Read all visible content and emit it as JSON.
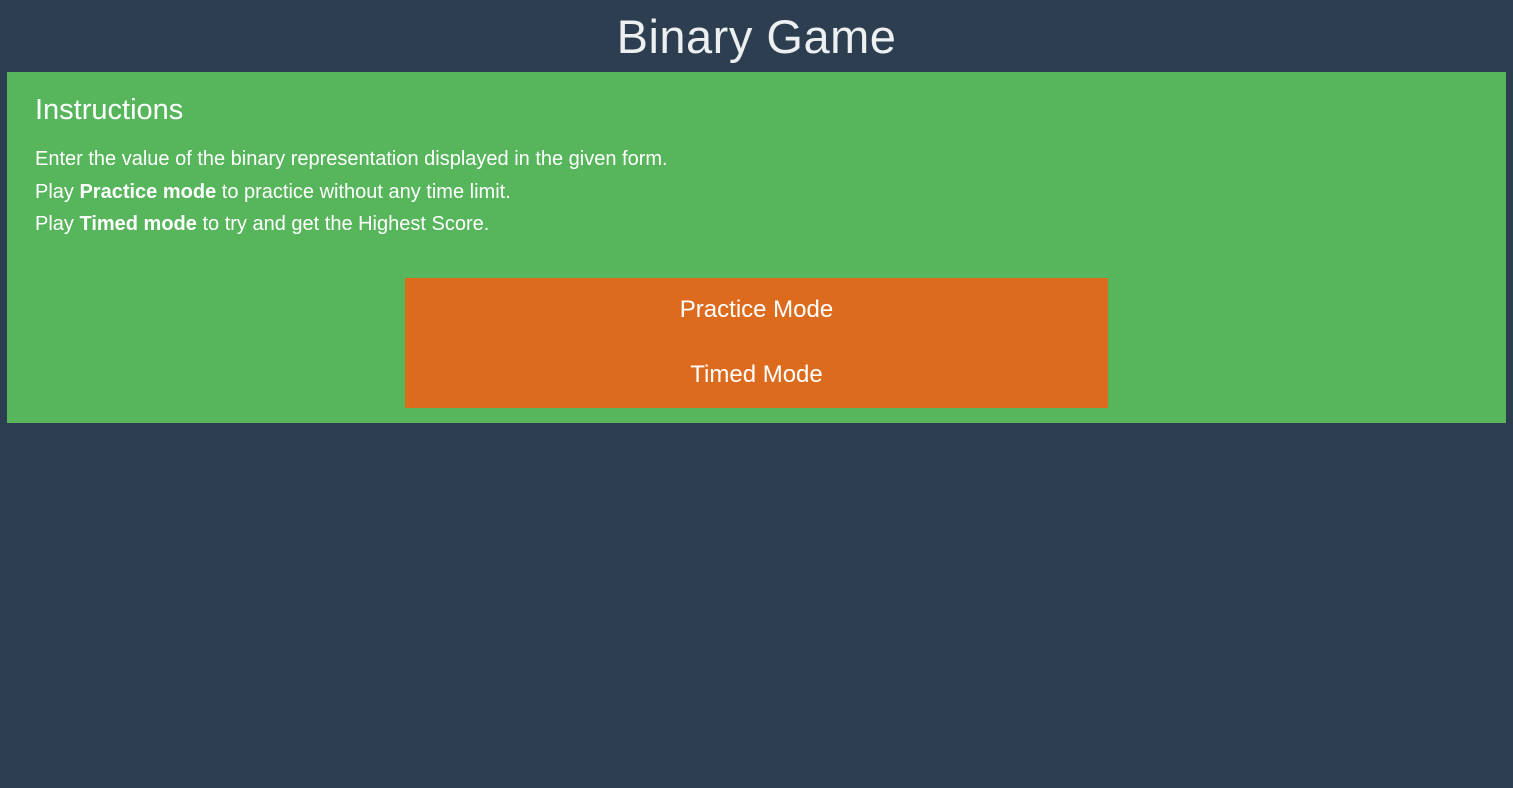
{
  "header": {
    "title": "Binary Game"
  },
  "instructions": {
    "heading": "Instructions",
    "line1": "Enter the value of the binary representation displayed in the given form.",
    "line2": {
      "prefix": "Play ",
      "bold": "Practice mode",
      "suffix": " to practice without any time limit."
    },
    "line3": {
      "prefix": "Play ",
      "bold": "Timed mode",
      "suffix": " to try and get the Highest Score."
    }
  },
  "menu": {
    "practice_label": "Practice Mode",
    "timed_label": "Timed Mode"
  },
  "colors": {
    "background_navy": "#2c3e50",
    "panel_green": "#57b65c",
    "button_orange": "#dc6b1e",
    "title_text": "#ecf0f1",
    "body_text": "#ffffff"
  }
}
